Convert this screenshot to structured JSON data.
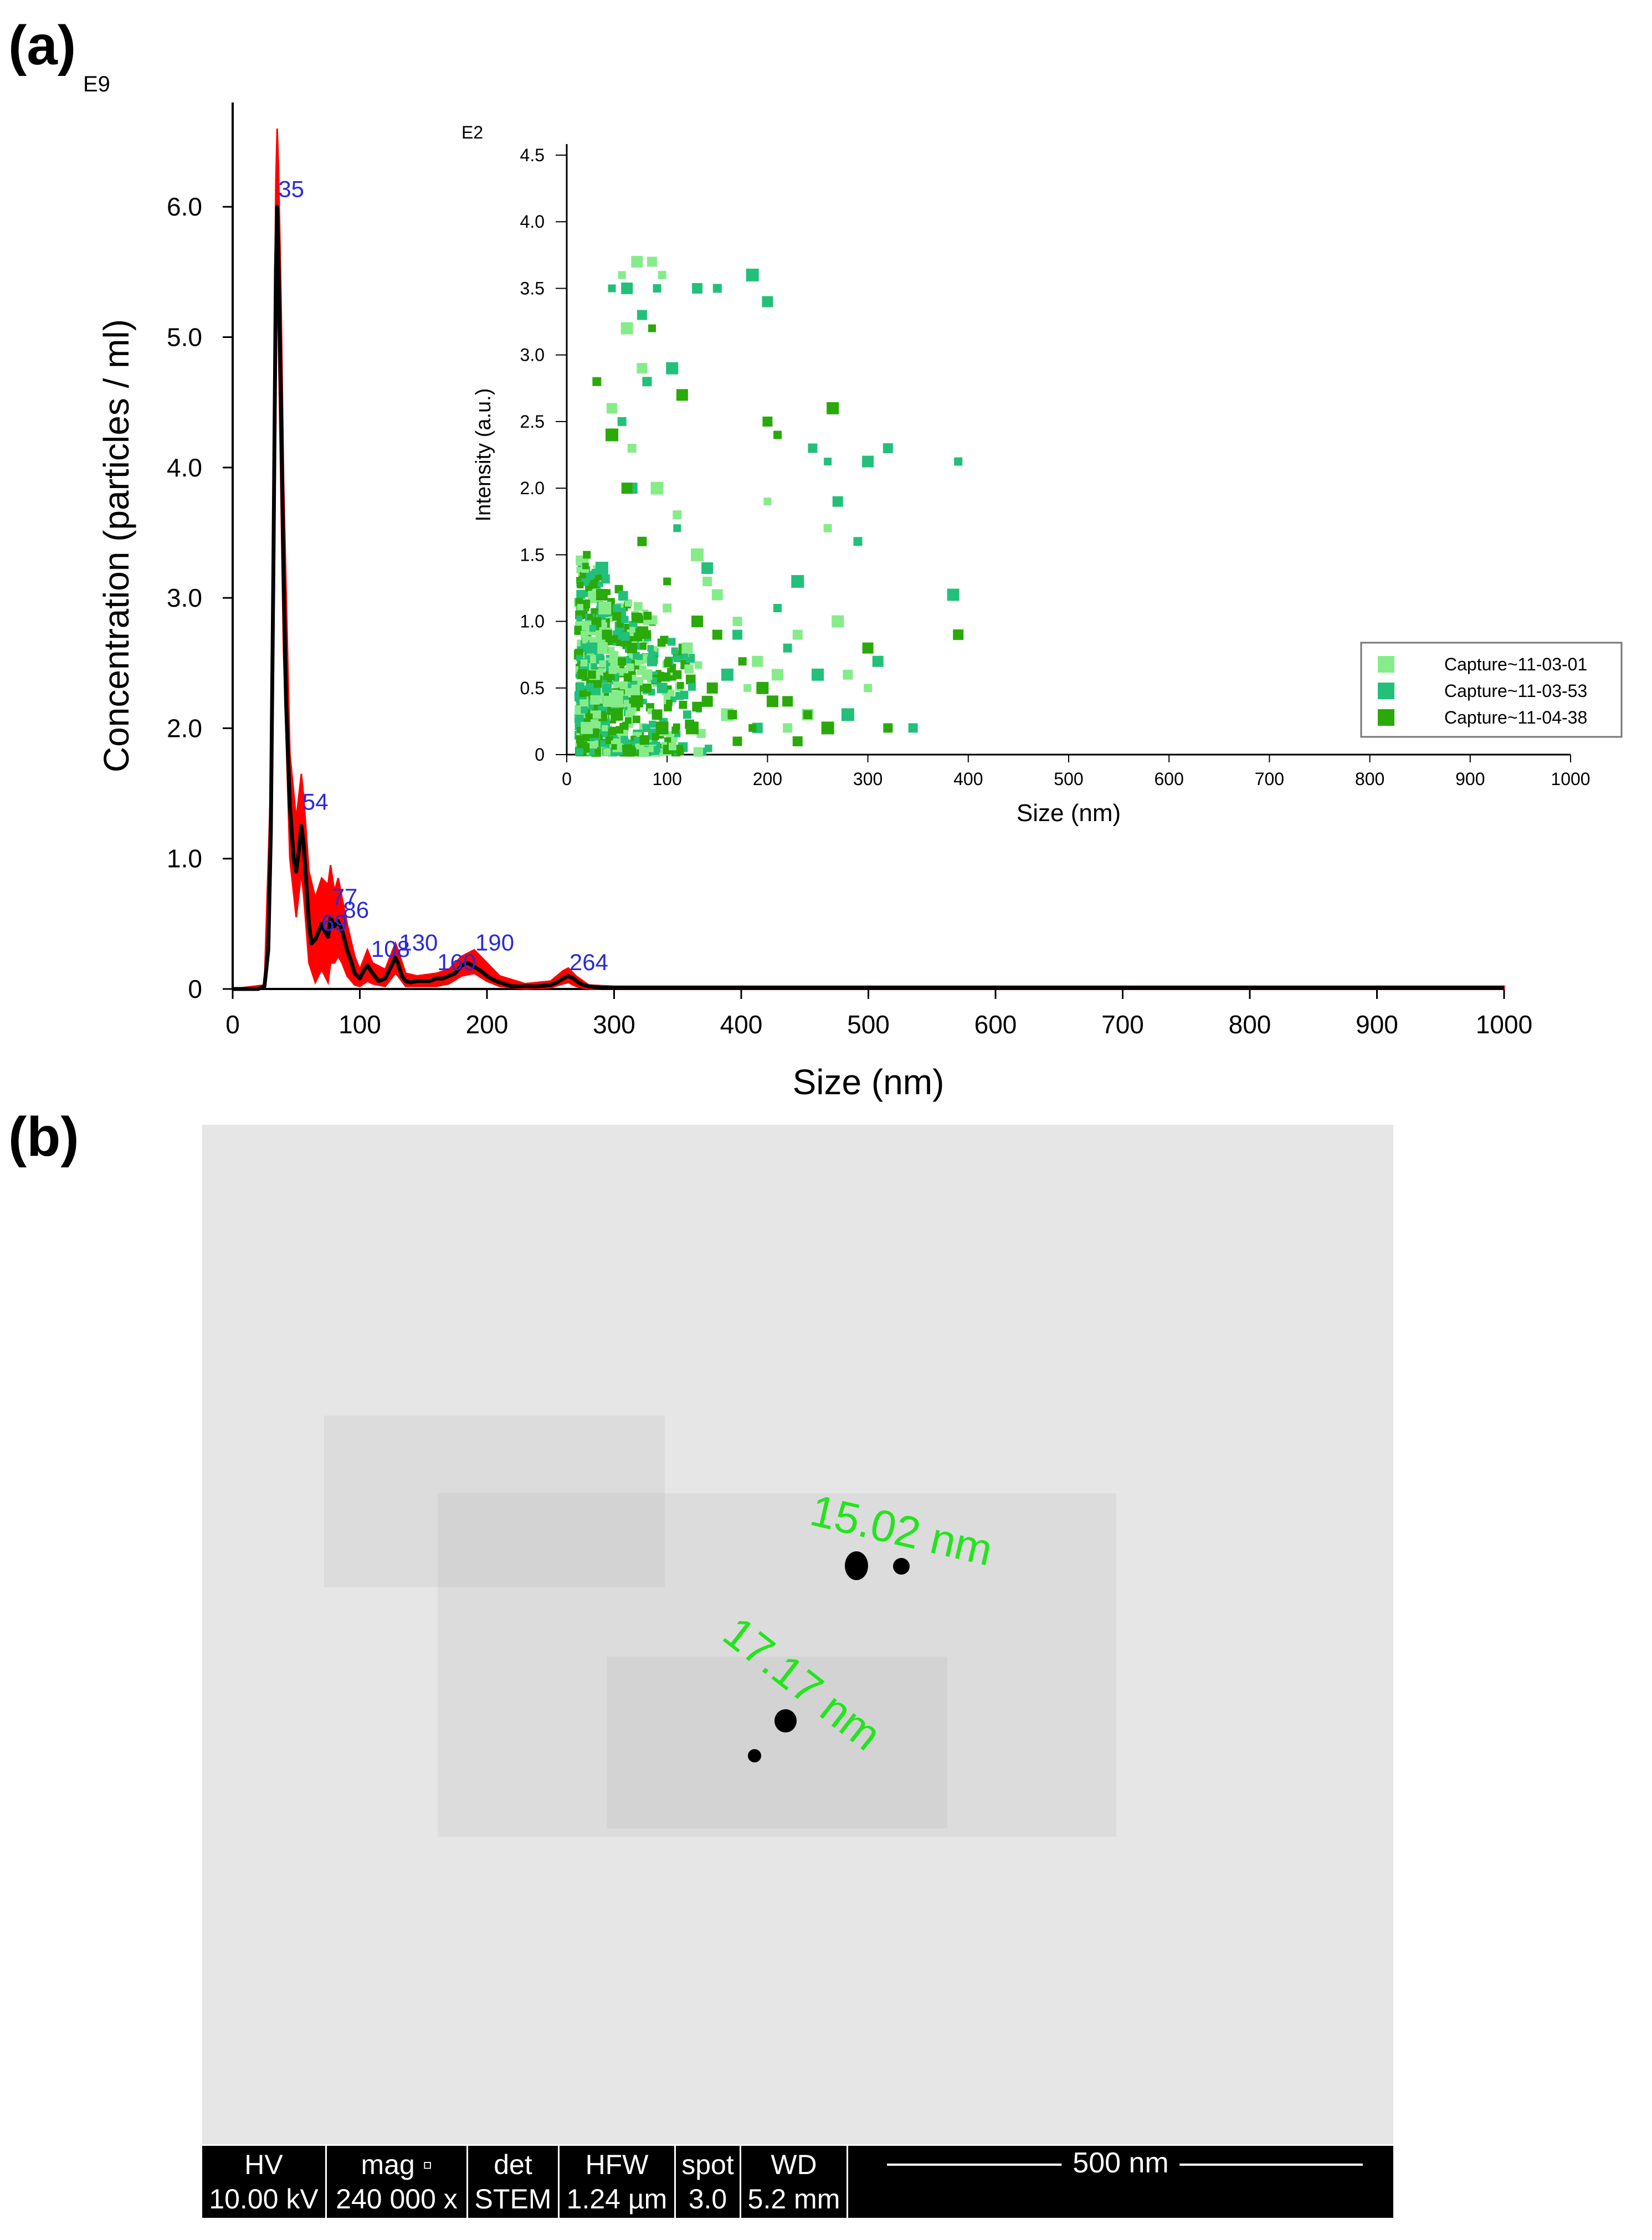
{
  "panels": {
    "a": "(a)",
    "b": "(b)"
  },
  "chart_data": [
    {
      "type": "line",
      "title": "",
      "exponent_label": "E9",
      "xlabel": "Size (nm)",
      "ylabel": "Concentration (particles / ml)",
      "xlim": [
        0,
        1000
      ],
      "ylim": [
        0,
        6.8
      ],
      "x_ticks": [
        "0",
        "100",
        "200",
        "300",
        "400",
        "500",
        "600",
        "700",
        "800",
        "900",
        "1000"
      ],
      "y_ticks": [
        "0",
        "1.0",
        "2.0",
        "3.0",
        "4.0",
        "5.0",
        "6.0"
      ],
      "grid": false,
      "colors": {
        "mean": "#000000",
        "error": "#ff0000",
        "peak_labels": "#2a2ad8"
      },
      "series": [
        {
          "role": "mean",
          "x": [
            0,
            10,
            20,
            25,
            28,
            30,
            32,
            34,
            35,
            36,
            38,
            40,
            42,
            45,
            48,
            50,
            52,
            54,
            56,
            58,
            60,
            62,
            65,
            68,
            70,
            72,
            75,
            77,
            80,
            83,
            86,
            88,
            90,
            93,
            96,
            100,
            103,
            106,
            110,
            115,
            120,
            125,
            128,
            130,
            133,
            136,
            140,
            145,
            150,
            155,
            160,
            165,
            170,
            175,
            180,
            185,
            190,
            195,
            200,
            205,
            210,
            220,
            230,
            240,
            250,
            255,
            260,
            264,
            268,
            272,
            276,
            280,
            290,
            300,
            350,
            400,
            500,
            600,
            700,
            800,
            900,
            1000
          ],
          "values": [
            0,
            0,
            0,
            0.02,
            0.3,
            1.2,
            3.2,
            5.5,
            6.0,
            5.6,
            4.5,
            3.2,
            2.2,
            1.4,
            1.0,
            0.9,
            1.05,
            1.25,
            1.1,
            0.8,
            0.5,
            0.35,
            0.38,
            0.45,
            0.5,
            0.45,
            0.4,
            0.55,
            0.48,
            0.52,
            0.45,
            0.38,
            0.3,
            0.22,
            0.12,
            0.08,
            0.14,
            0.18,
            0.12,
            0.06,
            0.08,
            0.18,
            0.24,
            0.2,
            0.1,
            0.06,
            0.05,
            0.06,
            0.06,
            0.06,
            0.08,
            0.08,
            0.1,
            0.12,
            0.18,
            0.2,
            0.17,
            0.14,
            0.1,
            0.07,
            0.05,
            0.02,
            0.02,
            0.02,
            0.03,
            0.05,
            0.08,
            0.1,
            0.08,
            0.05,
            0.03,
            0.02,
            0.01,
            0.01,
            0.01,
            0.01,
            0.01,
            0.01,
            0.01,
            0.01,
            0.01,
            0.01
          ]
        },
        {
          "role": "error_upper",
          "x": [
            0,
            25,
            30,
            32,
            34,
            35,
            36,
            38,
            40,
            45,
            50,
            54,
            56,
            60,
            65,
            70,
            75,
            77,
            80,
            83,
            86,
            90,
            96,
            100,
            106,
            110,
            120,
            128,
            130,
            136,
            145,
            160,
            170,
            180,
            190,
            200,
            210,
            230,
            250,
            260,
            264,
            270,
            280,
            300,
            1000
          ],
          "values": [
            0,
            0.03,
            1.6,
            4.0,
            6.2,
            6.6,
            6.3,
            5.3,
            3.9,
            1.8,
            1.3,
            1.65,
            1.45,
            0.9,
            0.7,
            0.85,
            0.8,
            0.95,
            0.75,
            0.85,
            0.7,
            0.5,
            0.25,
            0.15,
            0.3,
            0.2,
            0.15,
            0.35,
            0.3,
            0.12,
            0.1,
            0.12,
            0.15,
            0.25,
            0.3,
            0.2,
            0.1,
            0.04,
            0.06,
            0.14,
            0.16,
            0.1,
            0.03,
            0.02,
            0.02
          ]
        },
        {
          "role": "error_lower",
          "x": [
            0,
            25,
            30,
            32,
            34,
            35,
            36,
            38,
            40,
            45,
            50,
            54,
            56,
            60,
            65,
            70,
            75,
            77,
            80,
            83,
            86,
            90,
            96,
            100,
            106,
            110,
            120,
            128,
            130,
            136,
            145,
            160,
            170,
            180,
            190,
            200,
            210,
            230,
            250,
            260,
            264,
            270,
            280,
            300,
            1000
          ],
          "values": [
            0,
            0.01,
            0.8,
            2.6,
            4.8,
            5.4,
            5.0,
            3.8,
            2.6,
            1.0,
            0.55,
            0.9,
            0.7,
            0.2,
            0.05,
            0.15,
            0.05,
            0.2,
            0.2,
            0.25,
            0.2,
            0.1,
            0.03,
            0.02,
            0.06,
            0.04,
            0.02,
            0.12,
            0.1,
            0.02,
            0.02,
            0.02,
            0.04,
            0.1,
            0.12,
            0.06,
            0.02,
            0.0,
            0.01,
            0.04,
            0.05,
            0.02,
            0.0,
            0.0,
            0.0
          ]
        }
      ],
      "peak_labels": [
        {
          "text": "35",
          "x": 35,
          "y": 6.05
        },
        {
          "text": "54",
          "x": 54,
          "y": 1.35
        },
        {
          "text": "77",
          "x": 77,
          "y": 0.62
        },
        {
          "text": "86",
          "x": 86,
          "y": 0.52
        },
        {
          "text": "69",
          "x": 69,
          "y": 0.42
        },
        {
          "text": "108",
          "x": 108,
          "y": 0.22
        },
        {
          "text": "130",
          "x": 130,
          "y": 0.27
        },
        {
          "text": "160",
          "x": 160,
          "y": 0.12
        },
        {
          "text": "190",
          "x": 190,
          "y": 0.27
        },
        {
          "text": "264",
          "x": 264,
          "y": 0.12
        }
      ]
    },
    {
      "type": "scatter",
      "title": "",
      "exponent_label": "E2",
      "xlabel": "Size (nm)",
      "ylabel": "Intensity (a.u.)",
      "xlim": [
        0,
        1000
      ],
      "ylim": [
        0,
        4.5
      ],
      "x_ticks": [
        "0",
        "100",
        "200",
        "300",
        "400",
        "500",
        "600",
        "700",
        "800",
        "900",
        "1000"
      ],
      "y_ticks": [
        "0",
        "0.5",
        "1.0",
        "1.5",
        "2.0",
        "2.5",
        "3.0",
        "3.5",
        "4.0",
        "4.5"
      ],
      "legend_position": "bottom-right",
      "series": [
        {
          "name": "Capture~11-03-01",
          "color": "#86ec8a",
          "x": [
            55,
            70,
            85,
            95,
            60,
            75,
            110,
            130,
            150,
            170,
            200,
            210,
            230,
            260,
            270,
            45,
            65,
            90,
            120,
            140,
            180,
            240,
            280,
            300,
            50,
            80,
            100,
            160,
            190,
            220,
            25,
            35,
            40,
            30,
            20,
            28,
            33,
            38,
            42,
            48
          ],
          "y": [
            3.6,
            3.7,
            3.7,
            3.6,
            3.2,
            2.9,
            1.8,
            1.5,
            1.2,
            1.0,
            1.9,
            0.6,
            0.9,
            1.7,
            1.0,
            2.6,
            2.3,
            2.0,
            0.8,
            1.3,
            0.5,
            0.3,
            0.6,
            0.5,
            0.4,
            0.6,
            1.1,
            0.3,
            0.7,
            0.2,
            1.2,
            0.8,
            0.5,
            0.3,
            0.2,
            0.6,
            0.9,
            1.1,
            0.4,
            0.7
          ]
        },
        {
          "name": "Capture~11-03-53",
          "color": "#23c07a",
          "x": [
            45,
            60,
            75,
            90,
            105,
            130,
            150,
            185,
            200,
            245,
            260,
            300,
            320,
            390,
            385,
            270,
            290,
            230,
            65,
            80,
            110,
            140,
            170,
            210,
            250,
            95,
            55,
            35,
            25,
            40,
            50,
            70,
            85,
            120,
            160,
            190,
            220,
            280,
            310,
            345
          ],
          "y": [
            3.5,
            3.5,
            3.3,
            3.5,
            2.9,
            3.5,
            3.5,
            3.6,
            3.4,
            2.3,
            2.2,
            2.2,
            2.3,
            2.2,
            1.2,
            1.9,
            1.6,
            1.3,
            2.0,
            2.8,
            1.7,
            1.4,
            0.9,
            1.1,
            0.6,
            0.5,
            2.5,
            1.4,
            0.8,
            0.5,
            1.1,
            0.4,
            0.7,
            0.3,
            0.6,
            0.2,
            0.8,
            0.3,
            0.7,
            0.2
          ]
        },
        {
          "name": "Capture~11-04-38",
          "color": "#2aa90a",
          "x": [
            85,
            115,
            200,
            210,
            265,
            390,
            30,
            45,
            60,
            75,
            100,
            130,
            150,
            175,
            195,
            220,
            240,
            260,
            300,
            320,
            20,
            35,
            40,
            55,
            70,
            90,
            110,
            125,
            145,
            165,
            185,
            205,
            230,
            25,
            50,
            65,
            80,
            95,
            140,
            170
          ],
          "y": [
            3.2,
            2.7,
            2.5,
            2.4,
            2.6,
            0.9,
            2.8,
            2.4,
            2.0,
            1.6,
            1.3,
            1.0,
            0.9,
            0.7,
            0.5,
            0.4,
            0.3,
            0.2,
            0.8,
            0.2,
            1.5,
            1.2,
            0.9,
            0.7,
            0.4,
            0.3,
            0.6,
            0.2,
            0.5,
            0.3,
            0.2,
            0.4,
            0.1,
            0.6,
            0.3,
            0.8,
            0.5,
            0.2,
            0.4,
            0.1
          ]
        }
      ]
    }
  ],
  "sem": {
    "measurements": [
      "15.02 nm",
      "17.17 nm"
    ],
    "databar": [
      {
        "header": "HV",
        "value": "10.00 kV"
      },
      {
        "header": "mag ▫",
        "value": "240 000 x"
      },
      {
        "header": "det",
        "value": "STEM"
      },
      {
        "header": "HFW",
        "value": "1.24 µm"
      },
      {
        "header": "spot",
        "value": "3.0"
      },
      {
        "header": "WD",
        "value": "5.2 mm"
      }
    ],
    "scale_bar": "500 nm"
  }
}
